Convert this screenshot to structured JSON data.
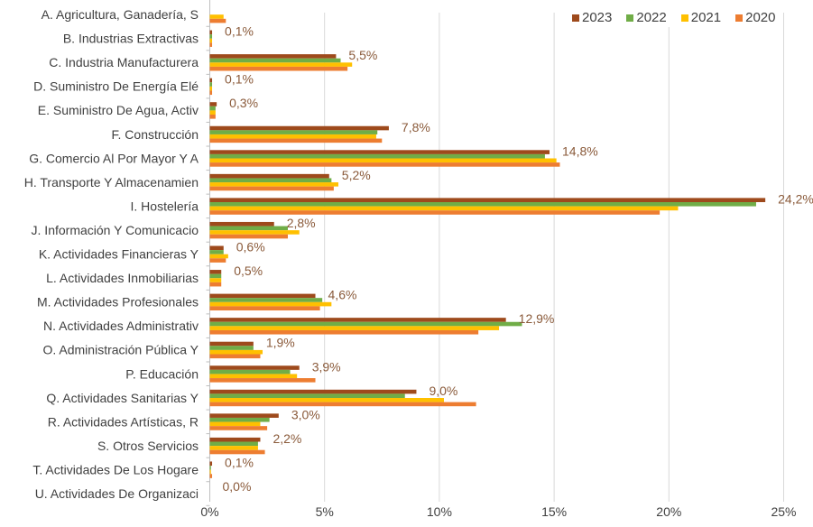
{
  "chart_data": {
    "type": "bar",
    "orientation": "horizontal",
    "title": "",
    "xlabel": "",
    "ylabel": "",
    "xlim": [
      0,
      25
    ],
    "x_ticks": [
      "0%",
      "5%",
      "10%",
      "15%",
      "20%",
      "25%"
    ],
    "grid": true,
    "legend_position": "top-right",
    "categories": [
      "A. Agricultura, Ganadería, S",
      "B. Industrias Extractivas",
      "C. Industria Manufacturera",
      "D. Suministro De Energía Elé",
      "E. Suministro De Agua, Activ",
      "F. Construcción",
      "G. Comercio Al Por Mayor Y A",
      "H. Transporte Y Almacenamien",
      "I. Hostelería",
      "J. Información Y Comunicacio",
      "K. Actividades Financieras Y",
      "L. Actividades Inmobiliarias",
      "M. Actividades Profesionales",
      "N. Actividades Administrativ",
      "O. Administración Pública Y",
      "P. Educación",
      "Q. Actividades Sanitarias Y",
      "R. Actividades Artísticas, R",
      "S. Otros Servicios",
      "T. Actividades De Los Hogare",
      "U. Actividades De Organizaci"
    ],
    "series": [
      {
        "name": "2023",
        "color": "#9E4A1C",
        "values": [
          null,
          0.1,
          5.5,
          0.1,
          0.3,
          7.8,
          14.8,
          5.2,
          24.2,
          2.8,
          0.6,
          0.5,
          4.6,
          12.9,
          1.9,
          3.9,
          9.0,
          3.0,
          2.2,
          0.1,
          0.0
        ]
      },
      {
        "name": "2022",
        "color": "#70AD47",
        "values": [
          null,
          0.1,
          5.7,
          0.1,
          0.25,
          7.3,
          14.6,
          5.3,
          23.8,
          3.4,
          0.6,
          0.5,
          4.9,
          13.6,
          1.9,
          3.5,
          8.5,
          2.6,
          2.1,
          0.05,
          0.0
        ]
      },
      {
        "name": "2021",
        "color": "#FFC000",
        "values": [
          0.6,
          0.1,
          6.2,
          0.1,
          0.25,
          7.25,
          15.1,
          5.6,
          20.4,
          3.9,
          0.8,
          0.5,
          5.3,
          12.6,
          2.3,
          3.8,
          10.2,
          2.2,
          2.1,
          0.05,
          0.0
        ]
      },
      {
        "name": "2020",
        "color": "#ED7D31",
        "values": [
          0.7,
          0.1,
          6.0,
          0.1,
          0.25,
          7.5,
          15.25,
          5.4,
          19.6,
          3.4,
          0.7,
          0.5,
          4.8,
          11.7,
          2.2,
          4.6,
          11.6,
          2.5,
          2.4,
          0.1,
          0.0
        ]
      }
    ],
    "data_labels": [
      null,
      "0,1%",
      "5,5%",
      "0,1%",
      "0,3%",
      "7,8%",
      "14,8%",
      "5,2%",
      "24,2%",
      "2,8%",
      "0,6%",
      "0,5%",
      "4,6%",
      "12,9%",
      "1,9%",
      "3,9%",
      "9,0%",
      "3,0%",
      "2,2%",
      "0,1%",
      "0,0%"
    ],
    "data_label_color": "#8A5A3A"
  }
}
